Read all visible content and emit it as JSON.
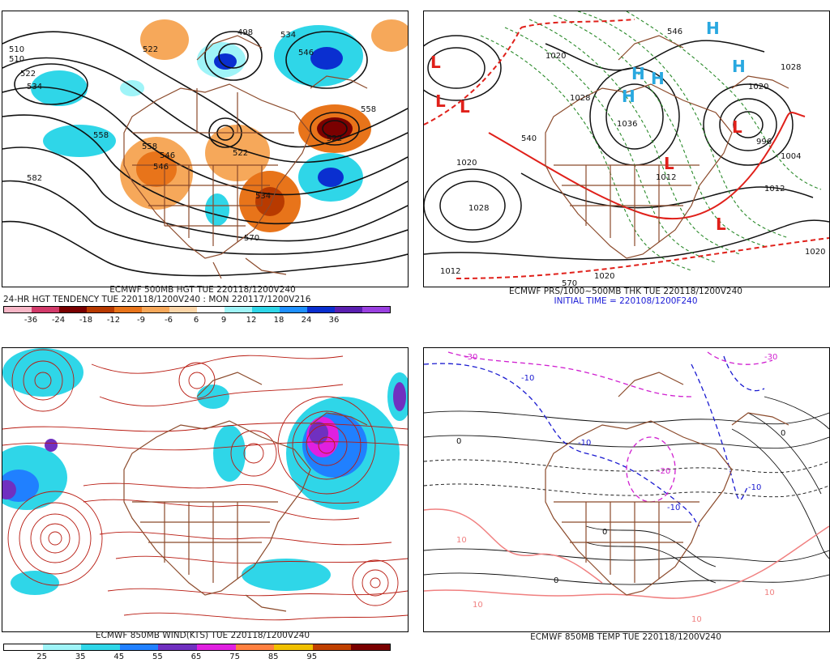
{
  "panels": {
    "p1": {
      "caption_line1": "ECMWF 500MB HGT TUE 220118/1200V240",
      "caption_line2": "24-HR HGT TENDENCY TUE 220118/1200V240 : MON 220117/1200V216",
      "colorbar_colors": [
        "#f6b6c6",
        "#d23a6a",
        "#7a0000",
        "#b83a00",
        "#e8741a",
        "#f6a85a",
        "#fbd5a8",
        "#ffffff",
        "#9ff4f8",
        "#2fd6e8",
        "#1e90ff",
        "#0a2fd0",
        "#5a1fb0",
        "#9a40e0"
      ],
      "colorbar_ticks": [
        "-36",
        "-24",
        "-18",
        "-12",
        "-9",
        "-6",
        "6",
        "9",
        "12",
        "18",
        "24",
        "36"
      ],
      "contour_labels": [
        "510",
        "510",
        "522",
        "534",
        "498",
        "522",
        "534",
        "546",
        "558",
        "546",
        "522",
        "534",
        "558",
        "522",
        "546",
        "558",
        "570",
        "582"
      ]
    },
    "p2": {
      "caption_line1": "ECMWF PRS/1000~500MB THK TUE 220118/1200V240",
      "caption_line2": "INITIAL TIME = 220108/1200F240",
      "pressure_labels": [
        "1020",
        "1028",
        "1012",
        "1020",
        "1028",
        "1036",
        "996",
        "1004",
        "1012",
        "1020",
        "1028",
        "1012",
        "1020",
        "1020",
        "570",
        "540",
        "546"
      ],
      "low_symbol": "L",
      "high_symbol": "H"
    },
    "p3": {
      "caption_line1": "ECMWF 850MB WIND(KTS) TUE 220118/1200V240",
      "colorbar_colors": [
        "#ffffff",
        "#9ff4f8",
        "#2fd6e8",
        "#2080ff",
        "#7030c0",
        "#e020e0",
        "#ff8040",
        "#f0c000",
        "#c04000",
        "#7a0000"
      ],
      "colorbar_ticks": [
        "25",
        "35",
        "45",
        "55",
        "65",
        "75",
        "85",
        "95"
      ]
    },
    "p4": {
      "caption_line1": "ECMWF 850MB TEMP TUE 220118/1200V240",
      "temp_labels": [
        "-30",
        "-30",
        "-20",
        "-10",
        "-10",
        "-10",
        "-10",
        "0",
        "0",
        "0",
        "0",
        "10",
        "10",
        "10",
        "10"
      ]
    }
  },
  "colors": {
    "contour_black": "#111111",
    "map_brown": "#8b4a2b",
    "low_red": "#e0201a",
    "high_blue": "#29a8e0",
    "thickness_green": "#2a8a2a",
    "thickness_red": "#e0201a",
    "streamline_red": "#b81a10",
    "temp_blue": "#1a1ad0",
    "temp_magenta": "#d020d0",
    "temp_pink": "#f08080"
  }
}
